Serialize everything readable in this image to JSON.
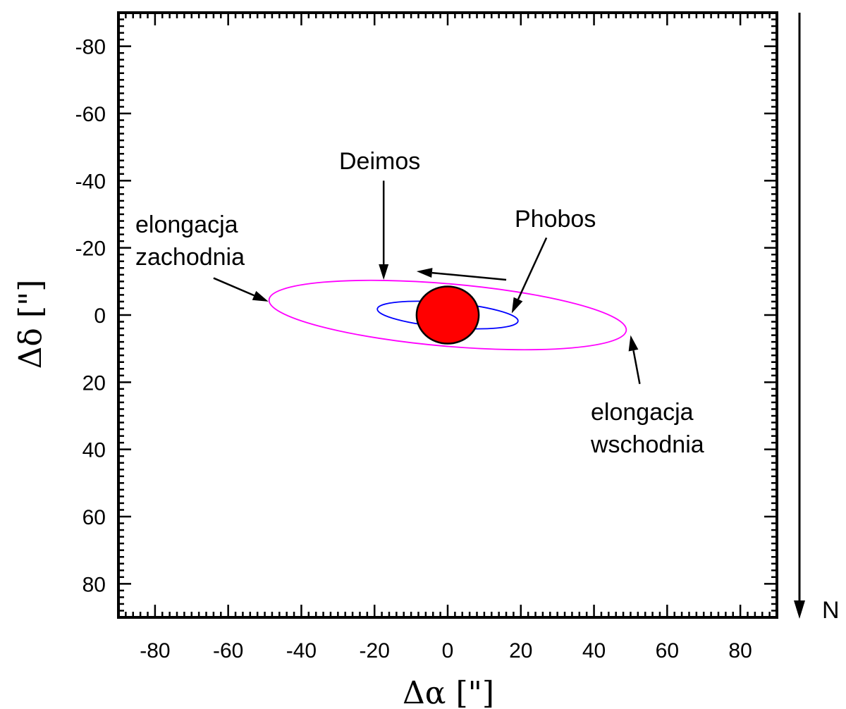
{
  "chart_data": {
    "type": "line",
    "xlabel": "Δα [\"]",
    "ylabel": "Δδ [\"]",
    "xlim": [
      -90,
      90
    ],
    "ylim": [
      -90,
      90
    ],
    "y_inverted": true,
    "x_ticks": [
      -80,
      -60,
      -40,
      -20,
      0,
      20,
      40,
      60,
      80
    ],
    "y_ticks": [
      -80,
      -60,
      -40,
      -20,
      0,
      20,
      40,
      60,
      80
    ],
    "grid": false,
    "series": [
      {
        "name": "Deimos",
        "color": "#ff00ff",
        "shape": "ellipse",
        "center": [
          0,
          0
        ],
        "semi_major": 49,
        "semi_minor": 9.3,
        "tilt_deg": 4.9
      },
      {
        "name": "Phobos",
        "color": "#0000ff",
        "shape": "ellipse",
        "center": [
          0,
          0
        ],
        "semi_major": 19.3,
        "semi_minor": 3.7,
        "tilt_deg": 4.9
      }
    ],
    "planet": {
      "center": [
        0,
        0
      ],
      "radius": 8.5,
      "color": "#ff0000"
    },
    "annotations": {
      "deimos": "Deimos",
      "phobos": "Phobos",
      "west_1": "elongacja",
      "west_2": "zachodnia",
      "east_1": "elongacja",
      "east_2": "wschodnia",
      "north": "N"
    },
    "annotation_arrows": [
      {
        "target": "deimos-orbit-top",
        "from": [
          -17.5,
          -40
        ],
        "to": [
          -17.5,
          -10.5
        ]
      },
      {
        "target": "phobos-orbit-right",
        "from": [
          27,
          -23
        ],
        "to": [
          17.5,
          -0.5
        ]
      },
      {
        "target": "west-elongation",
        "from": [
          -64,
          -11
        ],
        "to": [
          -49,
          -4
        ]
      },
      {
        "target": "east-elongation",
        "from": [
          52.5,
          20.5
        ],
        "to": [
          50,
          6
        ]
      },
      {
        "target": "direction-of-motion",
        "from": [
          16,
          -10.5
        ],
        "to": [
          -8.5,
          -13
        ]
      }
    ]
  }
}
